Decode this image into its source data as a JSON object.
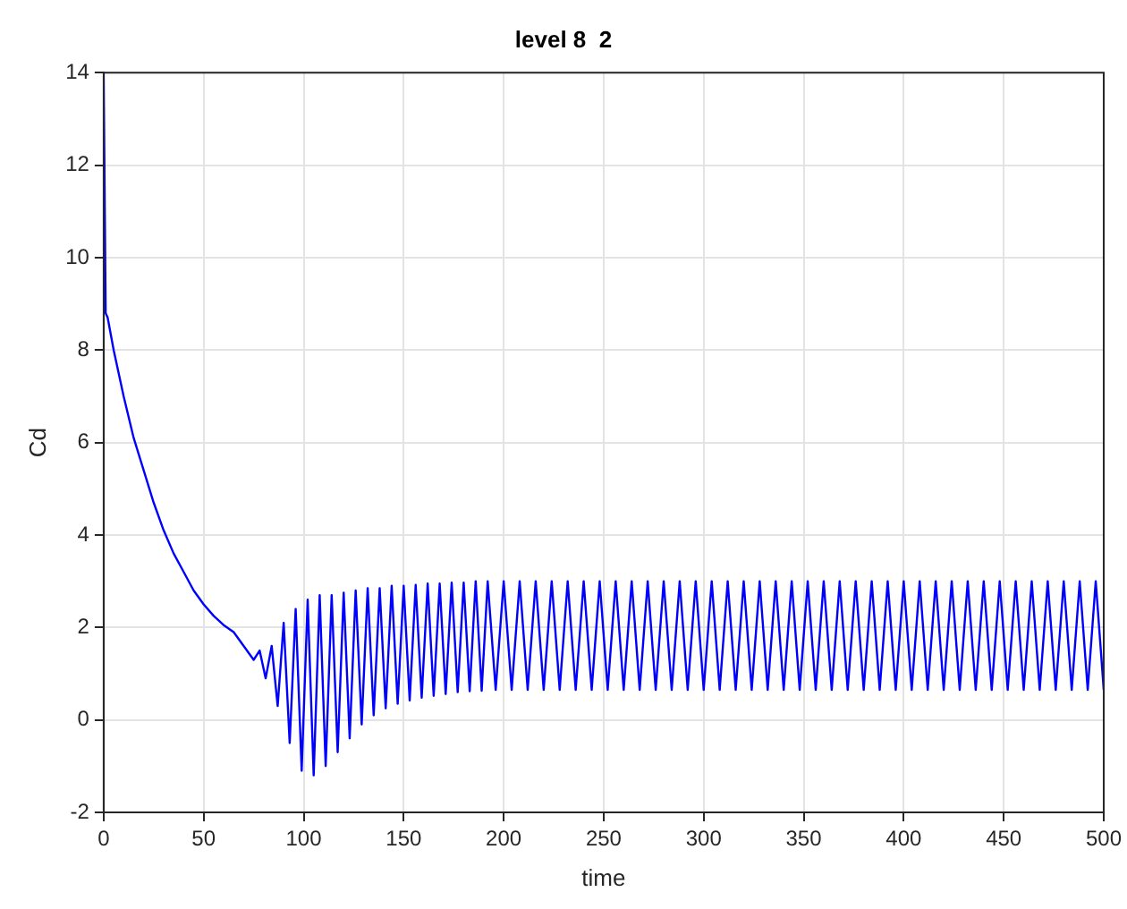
{
  "chart_data": {
    "type": "line",
    "title": "level 8  2",
    "xlabel": "time",
    "ylabel": "Cd",
    "xlim": [
      0,
      500
    ],
    "xticks": [
      0,
      50,
      100,
      150,
      200,
      250,
      300,
      350,
      400,
      450,
      500
    ],
    "ylim": [
      -2,
      14
    ],
    "yticks": [
      -2,
      0,
      2,
      4,
      6,
      8,
      10,
      12,
      14
    ],
    "grid": true,
    "marker": "none",
    "line_style": "solid",
    "series": [
      {
        "color": "#0000ff",
        "x": [
          0,
          1,
          2,
          5,
          10,
          15,
          20,
          25,
          30,
          35,
          40,
          45,
          50,
          55,
          60,
          65,
          70,
          75,
          78,
          81,
          84,
          87,
          90,
          93,
          96,
          99,
          102,
          105,
          108,
          111,
          114,
          117,
          120,
          123,
          126,
          129,
          132,
          135,
          138,
          141,
          144,
          147,
          150,
          153,
          156,
          159,
          162,
          165,
          168,
          171,
          174,
          177,
          180,
          183,
          186,
          189,
          192,
          196,
          200,
          204,
          208,
          212,
          216,
          220,
          224,
          228,
          232,
          236,
          240,
          244,
          248,
          252,
          256,
          260,
          264,
          268,
          272,
          276,
          280,
          284,
          288,
          292,
          296,
          300,
          304,
          308,
          312,
          316,
          320,
          324,
          328,
          332,
          336,
          340,
          344,
          348,
          352,
          356,
          360,
          364,
          368,
          372,
          376,
          380,
          384,
          388,
          392,
          396,
          400,
          404,
          408,
          412,
          416,
          420,
          424,
          428,
          432,
          436,
          440,
          444,
          448,
          452,
          456,
          460,
          464,
          468,
          472,
          476,
          480,
          484,
          488,
          492,
          496,
          500
        ],
        "values": [
          14,
          8.8,
          8.7,
          8.0,
          7.0,
          6.1,
          5.4,
          4.7,
          4.1,
          3.6,
          3.2,
          2.8,
          2.5,
          2.25,
          2.05,
          1.9,
          1.6,
          1.3,
          1.5,
          0.9,
          1.6,
          0.3,
          2.1,
          -0.5,
          2.4,
          -1.1,
          2.6,
          -1.2,
          2.7,
          -1.0,
          2.7,
          -0.7,
          2.75,
          -0.4,
          2.8,
          -0.1,
          2.85,
          0.1,
          2.85,
          0.25,
          2.9,
          0.35,
          2.9,
          0.42,
          2.92,
          0.48,
          2.95,
          0.52,
          2.95,
          0.56,
          2.97,
          0.6,
          2.97,
          0.62,
          3.0,
          0.63,
          3,
          0.65,
          3,
          0.65,
          3,
          0.65,
          3,
          0.65,
          3,
          0.65,
          3,
          0.65,
          3,
          0.65,
          3,
          0.65,
          3,
          0.65,
          3,
          0.65,
          3,
          0.65,
          3,
          0.65,
          3,
          0.65,
          3,
          0.65,
          3,
          0.65,
          3,
          0.65,
          3,
          0.65,
          3,
          0.65,
          3,
          0.65,
          3,
          0.65,
          3,
          0.65,
          3,
          0.65,
          3,
          0.65,
          3,
          0.65,
          3,
          0.65,
          3,
          0.65,
          3,
          0.65,
          3,
          0.65,
          3,
          0.65,
          3,
          0.65,
          3,
          0.65,
          3,
          0.65,
          3,
          0.65,
          3,
          0.65,
          3,
          0.65,
          3,
          0.65,
          3,
          0.65,
          3,
          0.65,
          3,
          0.65
        ]
      }
    ]
  }
}
